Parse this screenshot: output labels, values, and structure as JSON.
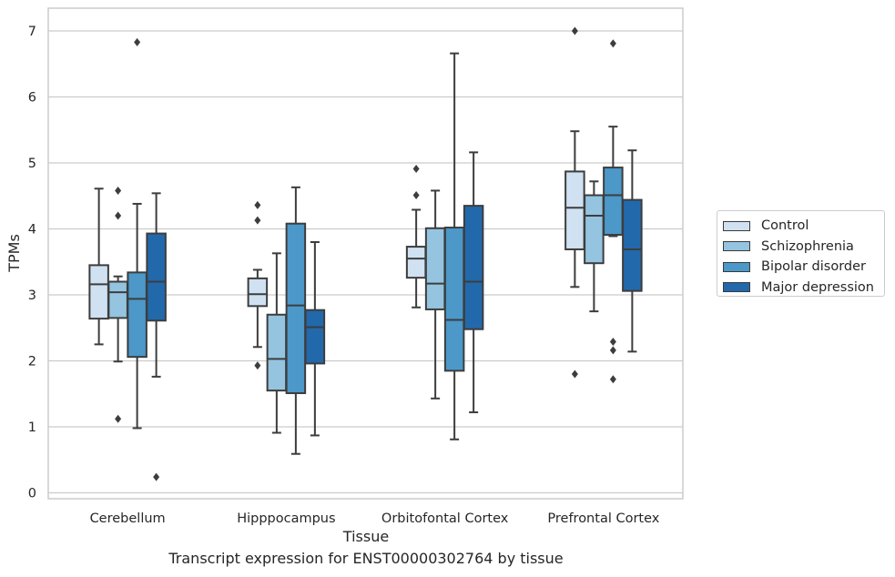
{
  "chart_data": {
    "type": "box",
    "xlabel": "Tissue",
    "ylabel": "TPMs",
    "caption": "Transcript expression for ENST00000302764 by tissue",
    "ylim": [
      -0.1,
      7.35
    ],
    "yticks": [
      0,
      1,
      2,
      3,
      4,
      5,
      6,
      7
    ],
    "grid": "horizontal",
    "legend_position": "right",
    "categories": [
      "Cerebellum",
      "Hipppocampus",
      "Orbitofontal Cortex",
      "Prefrontal Cortex"
    ],
    "series": [
      {
        "name": "Control",
        "color": "#d0e1f2",
        "boxes": [
          {
            "whislo": 2.25,
            "q1": 2.64,
            "med": 3.16,
            "q3": 3.45,
            "whishi": 4.61,
            "fliers": []
          },
          {
            "whislo": 2.21,
            "q1": 2.83,
            "med": 3.01,
            "q3": 3.25,
            "whishi": 3.38,
            "fliers": [
              4.36,
              4.13,
              1.93
            ]
          },
          {
            "whislo": 2.81,
            "q1": 3.26,
            "med": 3.55,
            "q3": 3.73,
            "whishi": 4.29,
            "fliers": [
              4.91,
              4.51
            ]
          },
          {
            "whislo": 3.12,
            "q1": 3.69,
            "med": 4.32,
            "q3": 4.87,
            "whishi": 5.48,
            "fliers": [
              7.0,
              1.8
            ]
          }
        ]
      },
      {
        "name": "Schizophrenia",
        "color": "#94c4df",
        "boxes": [
          {
            "whislo": 1.99,
            "q1": 2.65,
            "med": 3.04,
            "q3": 3.2,
            "whishi": 3.28,
            "fliers": [
              4.58,
              4.2,
              1.12
            ]
          },
          {
            "whislo": 0.91,
            "q1": 1.55,
            "med": 2.03,
            "q3": 2.7,
            "whishi": 3.63,
            "fliers": []
          },
          {
            "whislo": 1.43,
            "q1": 2.78,
            "med": 3.17,
            "q3": 4.01,
            "whishi": 4.58,
            "fliers": []
          },
          {
            "whislo": 2.75,
            "q1": 3.48,
            "med": 4.2,
            "q3": 4.51,
            "whishi": 4.72,
            "fliers": []
          }
        ]
      },
      {
        "name": "Bipolar disorder",
        "color": "#4b98c9",
        "boxes": [
          {
            "whislo": 0.98,
            "q1": 2.06,
            "med": 2.94,
            "q3": 3.34,
            "whishi": 4.38,
            "fliers": [
              6.83
            ]
          },
          {
            "whislo": 0.59,
            "q1": 1.51,
            "med": 2.84,
            "q3": 4.08,
            "whishi": 4.63,
            "fliers": []
          },
          {
            "whislo": 0.81,
            "q1": 1.85,
            "med": 2.62,
            "q3": 4.02,
            "whishi": 6.66,
            "fliers": []
          },
          {
            "whislo": 3.89,
            "q1": 3.91,
            "med": 4.51,
            "q3": 4.93,
            "whishi": 5.55,
            "fliers": [
              6.81,
              2.29,
              2.16,
              1.72
            ]
          }
        ]
      },
      {
        "name": "Major depression",
        "color": "#2269ac",
        "boxes": [
          {
            "whislo": 1.76,
            "q1": 2.61,
            "med": 3.2,
            "q3": 3.93,
            "whishi": 4.54,
            "fliers": [
              0.24
            ]
          },
          {
            "whislo": 0.87,
            "q1": 1.96,
            "med": 2.51,
            "q3": 2.77,
            "whishi": 3.8,
            "fliers": []
          },
          {
            "whislo": 1.22,
            "q1": 2.48,
            "med": 3.2,
            "q3": 4.35,
            "whishi": 5.16,
            "fliers": []
          },
          {
            "whislo": 2.14,
            "q1": 3.06,
            "med": 3.69,
            "q3": 4.44,
            "whishi": 5.19,
            "fliers": []
          }
        ]
      }
    ]
  }
}
